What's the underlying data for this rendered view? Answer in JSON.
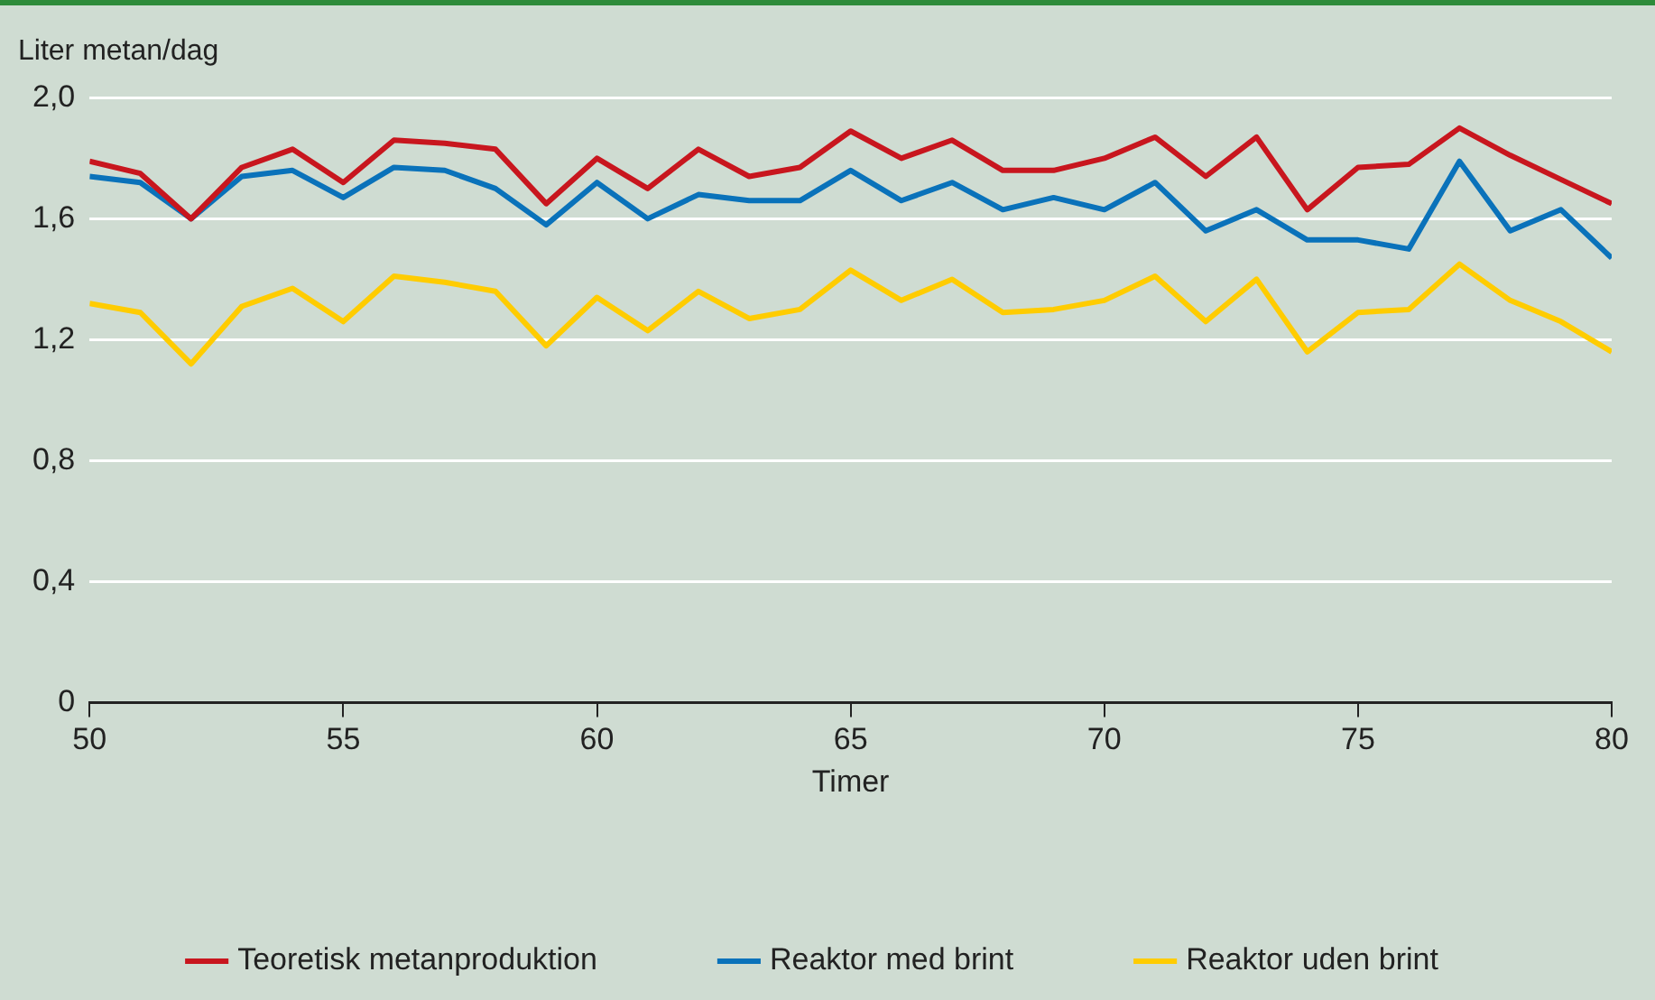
{
  "chart_data": {
    "type": "line",
    "ylabel": "Liter metan/dag",
    "xlabel": "Timer",
    "x": [
      50,
      51,
      52,
      53,
      54,
      55,
      56,
      57,
      58,
      59,
      60,
      61,
      62,
      63,
      64,
      65,
      66,
      67,
      68,
      69,
      70,
      71,
      72,
      73,
      74,
      75,
      76,
      77,
      78,
      79,
      80
    ],
    "series": [
      {
        "name": "Teoretisk metanproduktion",
        "color": "#c8161e",
        "values": [
          1.79,
          1.75,
          1.6,
          1.77,
          1.83,
          1.72,
          1.86,
          1.85,
          1.83,
          1.65,
          1.8,
          1.7,
          1.83,
          1.74,
          1.77,
          1.89,
          1.8,
          1.86,
          1.76,
          1.76,
          1.8,
          1.87,
          1.74,
          1.87,
          1.63,
          1.77,
          1.78,
          1.9,
          1.81,
          1.73,
          1.65
        ]
      },
      {
        "name": "Reaktor med brint",
        "color": "#0a72ba",
        "values": [
          1.74,
          1.72,
          1.6,
          1.74,
          1.76,
          1.67,
          1.77,
          1.76,
          1.7,
          1.58,
          1.72,
          1.6,
          1.68,
          1.66,
          1.66,
          1.76,
          1.66,
          1.72,
          1.63,
          1.67,
          1.63,
          1.72,
          1.56,
          1.63,
          1.53,
          1.53,
          1.5,
          1.79,
          1.56,
          1.63,
          1.47
        ]
      },
      {
        "name": "Reaktor uden brint",
        "color": "#ffcc00",
        "values": [
          1.32,
          1.29,
          1.12,
          1.31,
          1.37,
          1.26,
          1.41,
          1.39,
          1.36,
          1.18,
          1.34,
          1.23,
          1.36,
          1.27,
          1.3,
          1.43,
          1.33,
          1.4,
          1.29,
          1.3,
          1.33,
          1.41,
          1.26,
          1.4,
          1.16,
          1.29,
          1.3,
          1.45,
          1.33,
          1.26,
          1.16
        ]
      }
    ],
    "xlim": [
      50,
      80
    ],
    "xticks": [
      50,
      55,
      60,
      65,
      70,
      75,
      80
    ],
    "ylim": [
      0,
      2
    ],
    "yticks": [
      {
        "value": 0,
        "label": "0"
      },
      {
        "value": 0.4,
        "label": "0,4"
      },
      {
        "value": 0.8,
        "label": "0,8"
      },
      {
        "value": 1.2,
        "label": "1,2"
      },
      {
        "value": 1.6,
        "label": "1,6"
      },
      {
        "value": 2,
        "label": "2,0"
      }
    ],
    "grid": "y",
    "legend": "bottom",
    "marker": "none",
    "line_style": "solid"
  }
}
